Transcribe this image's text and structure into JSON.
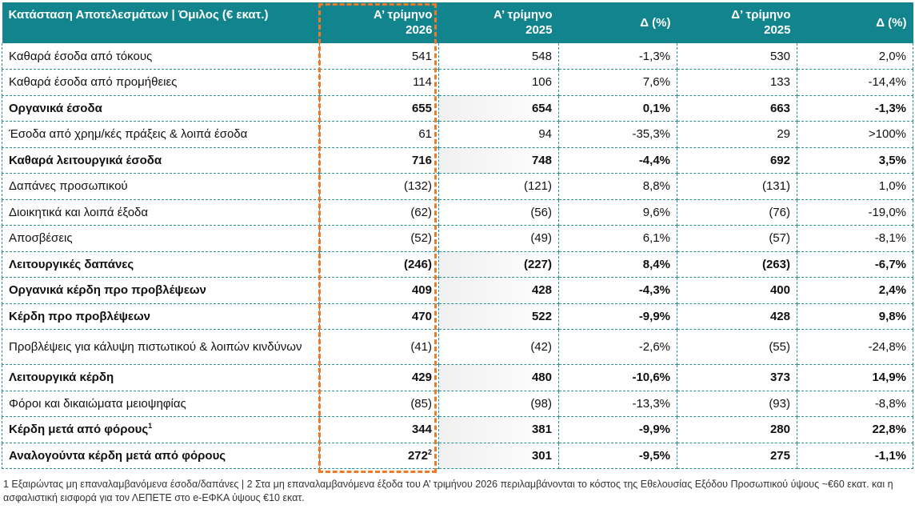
{
  "header": {
    "label": "Κατάσταση Αποτελεσμάτων | Όμιλος (€ εκατ.)",
    "col1_a": "Α’ τρίμηνο",
    "col1_b": "2026",
    "col2_a": "Α’ τρίμηνο",
    "col2_b": "2025",
    "col3": "Δ (%)",
    "col4_a": "Δ’ τρίμηνο",
    "col4_b": "2025",
    "col5": "Δ (%)"
  },
  "rows": [
    {
      "label": "Καθαρά έσοδα από τόκους",
      "q1_2026": "541",
      "q1_2025": "548",
      "d1": "-1,3%",
      "q4_2025": "530",
      "d2": "2,0%"
    },
    {
      "label": "Καθαρά έσοδα από προμήθειες",
      "q1_2026": "114",
      "q1_2025": "106",
      "d1": "7,6%",
      "q4_2025": "133",
      "d2": "-14,4%"
    },
    {
      "label": "Οργανικά έσοδα",
      "q1_2026": "655",
      "q1_2025": "654",
      "d1": "0,1%",
      "q4_2025": "663",
      "d2": "-1,3%"
    },
    {
      "label": "Έσοδα από χρημ/κές πράξεις & λοιπά έσοδα",
      "q1_2026": "61",
      "q1_2025": "94",
      "d1": "-35,3%",
      "q4_2025": "29",
      "d2": ">100%"
    },
    {
      "label": "Καθαρά λειτουργικά έσοδα",
      "q1_2026": "716",
      "q1_2025": "748",
      "d1": "-4,4%",
      "q4_2025": "692",
      "d2": "3,5%"
    },
    {
      "label": "Δαπάνες προσωπικού",
      "q1_2026": "(132)",
      "q1_2025": "(121)",
      "d1": "8,8%",
      "q4_2025": "(131)",
      "d2": "1,0%"
    },
    {
      "label": "Διοικητικά και λοιπά έξοδα",
      "q1_2026": "(62)",
      "q1_2025": "(56)",
      "d1": "9,6%",
      "q4_2025": "(76)",
      "d2": "-19,0%"
    },
    {
      "label": "Αποσβέσεις",
      "q1_2026": "(52)",
      "q1_2025": "(49)",
      "d1": "6,1%",
      "q4_2025": "(57)",
      "d2": "-8,1%"
    },
    {
      "label": "Λειτουργικές δαπάνες",
      "q1_2026": "(246)",
      "q1_2025": "(227)",
      "d1": "8,4%",
      "q4_2025": "(263)",
      "d2": "-6,7%"
    },
    {
      "label": "Οργανικά κέρδη προ προβλέψεων",
      "q1_2026": "409",
      "q1_2025": "428",
      "d1": "-4,3%",
      "q4_2025": "400",
      "d2": "2,4%"
    },
    {
      "label": "Κέρδη προ προβλέψεων",
      "q1_2026": "470",
      "q1_2025": "522",
      "d1": "-9,9%",
      "q4_2025": "428",
      "d2": "9,8%"
    },
    {
      "label": "Προβλέψεις για κάλυψη πιστωτικού & λοιπών κινδύνων",
      "q1_2026": "(41)",
      "q1_2025": "(42)",
      "d1": "-2,6%",
      "q4_2025": "(55)",
      "d2": "-24,8%"
    },
    {
      "label": "Λειτουργικά κέρδη",
      "q1_2026": "429",
      "q1_2025": "480",
      "d1": "-10,6%",
      "q4_2025": "373",
      "d2": "14,9%"
    },
    {
      "label": "Φόροι και δικαιώματα μειοψηφίας",
      "q1_2026": "(85)",
      "q1_2025": "(98)",
      "d1": "-13,3%",
      "q4_2025": "(93)",
      "d2": "-8,8%"
    },
    {
      "label": "Κέρδη μετά από φόρους",
      "label_sup": "1",
      "q1_2026": "344",
      "q1_2025": "381",
      "d1": "-9,9%",
      "q4_2025": "280",
      "d2": "22,8%"
    },
    {
      "label": "Αναλογούντα κέρδη μετά από φόρους",
      "q1_2026": "272",
      "q1_2026_sup": "2",
      "q1_2025": "301",
      "d1": "-9,5%",
      "q4_2025": "275",
      "d2": "-1,1%"
    }
  ],
  "footnote": "1 Εξαιρώντας μη επαναλαμβανόμενα έσοδα/δαπάνες | 2 Στα μη επαναλαμβανόμενα έξοδα του Α’ τριμήνου 2026 περιλαμβάνονται το κόστος της Εθελουσίας Εξόδου Προσωπικού ύψους ~€60 εκατ. και η ασφαλιστική εισφορά για τον ΛΕΠΕΤΕ στο e-ΕΦΚΑ ύψους €10 εκατ.",
  "highlight_color": "#ee7a28",
  "header_color": "#12848d"
}
